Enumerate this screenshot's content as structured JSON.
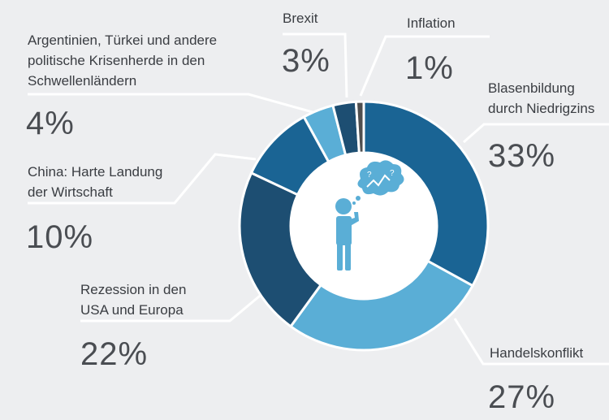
{
  "chart_data": {
    "type": "pie",
    "variant": "donut",
    "start_angle_deg": 0,
    "direction": "clockwise",
    "slices": [
      {
        "label": "Blasenbildung durch Niedrigzins",
        "label_lines": [
          "Blasenbildung",
          "durch Niedrigzins"
        ],
        "value": 33,
        "value_label": "33%",
        "color": "#1a6494"
      },
      {
        "label": "Handelskonflikt",
        "label_lines": [
          "Handelskonflikt"
        ],
        "value": 27,
        "value_label": "27%",
        "color": "#5aaed6"
      },
      {
        "label": "Rezession in den USA und Europa",
        "label_lines": [
          "Rezession in den",
          "USA und Europa"
        ],
        "value": 22,
        "value_label": "22%",
        "color": "#1d4e72"
      },
      {
        "label": "China: Harte Landung der Wirtschaft",
        "label_lines": [
          "China: Harte Landung",
          "der Wirtschaft"
        ],
        "value": 10,
        "value_label": "10%",
        "color": "#1a6494"
      },
      {
        "label": "Argentinien, Türkei und andere politische Krisenherde in den Schwellenländern",
        "label_lines": [
          "Argentinien, Türkei und andere",
          "politische Krisenherde in den",
          "Schwellenländern"
        ],
        "value": 4,
        "value_label": "4%",
        "color": "#5aaed6"
      },
      {
        "label": "Brexit",
        "label_lines": [
          "Brexit"
        ],
        "value": 3,
        "value_label": "3%",
        "color": "#1d4e72"
      },
      {
        "label": "Inflation",
        "label_lines": [
          "Inflation"
        ],
        "value": 1,
        "value_label": "1%",
        "color": "#4f4f4f"
      }
    ]
  },
  "colors": {
    "background": "#edeef0",
    "leader_line": "#ffffff",
    "text": "#3a3d42",
    "icon": "#5aaed6"
  },
  "icons": [
    "thinking-person-icon",
    "thought-bubble-icon"
  ]
}
